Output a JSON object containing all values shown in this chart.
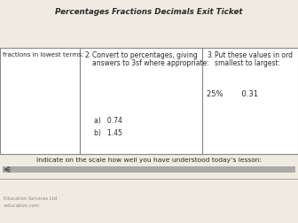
{
  "title": "Percentages Fractions Decimals Exit Ticket",
  "bg_color": "#f0ebe0",
  "box_bg": "#ffffff",
  "box1_text": "fractions in lowest terms:",
  "box2_num": "2.",
  "box2_line1": "Convert to percentages, giving",
  "box2_line2": "answers to 3sf where appropriate:",
  "box2_a": "a)   0.74",
  "box2_b": "b)   1.45",
  "box3_num": "3.",
  "box3_line1": "Put these values in ord",
  "box3_line2": "smallest to largest:",
  "box3_vals": "25%        0.31",
  "scale_text": "Indicate on the scale how well you have understood today’s lesson:",
  "footer1": "Education Services Ltd",
  "footer2": "-education.com",
  "font_color": "#2a2a2a",
  "border_color": "#888888",
  "scale_bar_color": "#aaaaaa"
}
